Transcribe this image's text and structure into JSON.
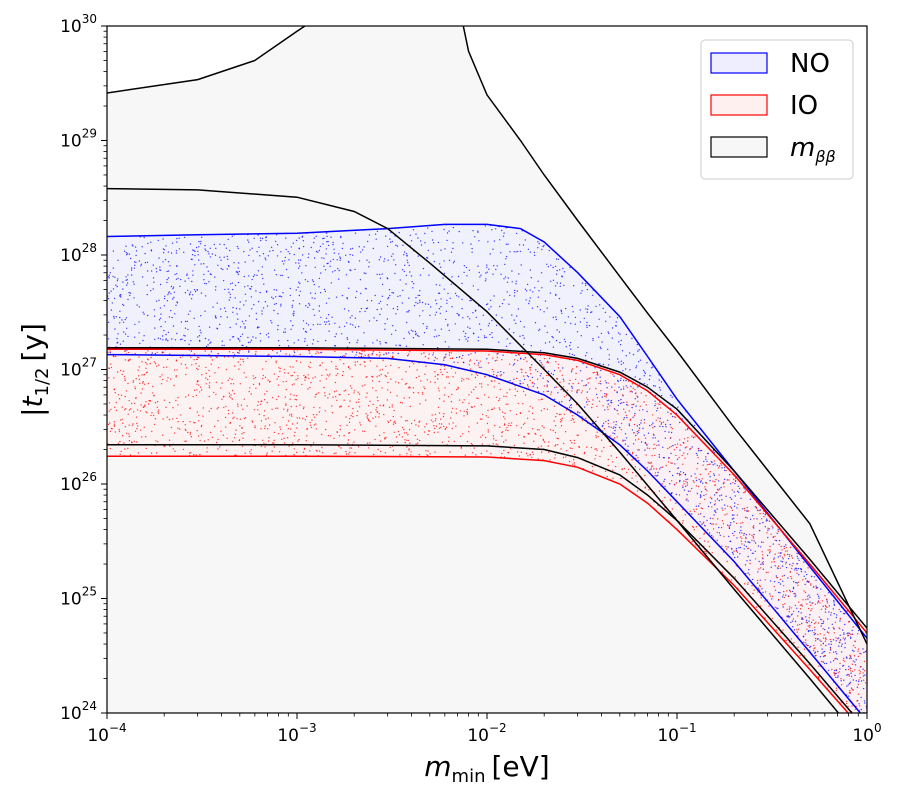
{
  "chart_data": {
    "type": "scatter",
    "xscale": "log",
    "yscale": "log",
    "xlim": [
      0.0001,
      1
    ],
    "ylim": [
      1e+24,
      1e+30
    ],
    "xlabel": {
      "base": "m",
      "sub": "min",
      "unit": "[eV]"
    },
    "ylabel": {
      "prefix": "|",
      "base": "t",
      "sub": "1/2",
      "unit": "[y]"
    },
    "xticks": [
      {
        "value": 0.0001,
        "base": "10",
        "exp": "−4"
      },
      {
        "value": 0.001,
        "base": "10",
        "exp": "−3"
      },
      {
        "value": 0.01,
        "base": "10",
        "exp": "−2"
      },
      {
        "value": 0.1,
        "base": "10",
        "exp": "−1"
      },
      {
        "value": 1,
        "base": "10",
        "exp": "0"
      }
    ],
    "yticks": [
      {
        "value": 1e+24,
        "base": "10",
        "exp": "24"
      },
      {
        "value": 1e+25,
        "base": "10",
        "exp": "25"
      },
      {
        "value": 1e+26,
        "base": "10",
        "exp": "26"
      },
      {
        "value": 1e+27,
        "base": "10",
        "exp": "27"
      },
      {
        "value": 1e+28,
        "base": "10",
        "exp": "28"
      },
      {
        "value": 1e+29,
        "base": "10",
        "exp": "29"
      },
      {
        "value": 1e+30,
        "base": "10",
        "exp": "30"
      }
    ],
    "legend": {
      "placement": "top-right",
      "entries": [
        {
          "label": "NO",
          "edge": "#0000ff",
          "fill": "#eeeeff"
        },
        {
          "label": "IO",
          "edge": "#ff0000",
          "fill": "#fff0f0"
        },
        {
          "label": "m",
          "sub": "ββ",
          "edge": "#000000",
          "fill": "#f7f7f7"
        }
      ]
    },
    "series": [
      {
        "name": "NO",
        "kind": "band",
        "color": "#0000ff",
        "fill": "#eeeeff",
        "upper": [
          [
            0.0001,
            1.45e+28
          ],
          [
            0.0003,
            1.5e+28
          ],
          [
            0.001,
            1.55e+28
          ],
          [
            0.003,
            1.7e+28
          ],
          [
            0.006,
            1.85e+28
          ],
          [
            0.01,
            1.85e+28
          ],
          [
            0.015,
            1.7e+28
          ],
          [
            0.02,
            1.3e+28
          ],
          [
            0.03,
            7e+27
          ],
          [
            0.05,
            2.9e+27
          ],
          [
            0.07,
            1.3e+27
          ],
          [
            0.1,
            5.5e+26
          ],
          [
            0.2,
            1.3e+26
          ],
          [
            0.5,
            1.9e+25
          ],
          [
            1,
            4.5e+24
          ]
        ],
        "lower": [
          [
            0.0001,
            1.35e+27
          ],
          [
            0.001,
            1.3e+27
          ],
          [
            0.003,
            1.25e+27
          ],
          [
            0.006,
            1.1e+27
          ],
          [
            0.01,
            9e+26
          ],
          [
            0.02,
            6e+26
          ],
          [
            0.03,
            4e+26
          ],
          [
            0.05,
            2.2e+26
          ],
          [
            0.07,
            1.3e+26
          ],
          [
            0.1,
            7e+25
          ],
          [
            0.2,
            2.1e+25
          ],
          [
            0.5,
            3.4e+24
          ],
          [
            1,
            8.5e+23
          ]
        ]
      },
      {
        "name": "IO",
        "kind": "band",
        "color": "#ff0000",
        "fill": "#fff0f0",
        "upper": [
          [
            0.0001,
            1.5e+27
          ],
          [
            0.001,
            1.5e+27
          ],
          [
            0.01,
            1.45e+27
          ],
          [
            0.02,
            1.35e+27
          ],
          [
            0.03,
            1.2e+27
          ],
          [
            0.05,
            9e+26
          ],
          [
            0.07,
            6.5e+26
          ],
          [
            0.1,
            4e+26
          ],
          [
            0.2,
            1.2e+26
          ],
          [
            0.5,
            2e+25
          ],
          [
            1,
            5e+24
          ]
        ],
        "lower": [
          [
            0.0001,
            1.75e+26
          ],
          [
            0.001,
            1.75e+26
          ],
          [
            0.01,
            1.72e+26
          ],
          [
            0.02,
            1.6e+26
          ],
          [
            0.03,
            1.4e+26
          ],
          [
            0.05,
            1e+26
          ],
          [
            0.07,
            6.8e+25
          ],
          [
            0.1,
            4e+25
          ],
          [
            0.2,
            1.3e+25
          ],
          [
            0.5,
            2.4e+24
          ],
          [
            1,
            6.5e+23
          ]
        ]
      },
      {
        "name": "m_bb",
        "kind": "lines",
        "color": "#000000",
        "fill": "#f7f7f7",
        "lines": [
          [
            [
              0.0001,
              2.6e+29
            ],
            [
              0.0003,
              3.4e+29
            ],
            [
              0.0006,
              5e+29
            ],
            [
              0.001,
              9e+29
            ],
            [
              0.0011,
              1e+30
            ]
          ],
          [
            [
              0.0075,
              1e+30
            ],
            [
              0.008,
              6e+29
            ],
            [
              0.01,
              2.5e+29
            ],
            [
              0.015,
              1e+29
            ],
            [
              0.02,
              5e+28
            ],
            [
              0.03,
              2e+28
            ],
            [
              0.05,
              6.5e+27
            ],
            [
              0.07,
              3.1e+27
            ],
            [
              0.1,
              1.45e+27
            ],
            [
              0.2,
              3.1e+26
            ],
            [
              0.5,
              4.5e+25
            ],
            [
              1,
              4e+24
            ]
          ],
          [
            [
              0.0001,
              3.8e+28
            ],
            [
              0.0003,
              3.7e+28
            ],
            [
              0.001,
              3.2e+28
            ],
            [
              0.002,
              2.4e+28
            ],
            [
              0.003,
              1.7e+28
            ],
            [
              0.005,
              8.5e+27
            ],
            [
              0.01,
              3.2e+27
            ],
            [
              0.02,
              1e+27
            ],
            [
              0.03,
              5e+26
            ],
            [
              0.05,
              1.9e+26
            ],
            [
              0.1,
              4.8e+25
            ],
            [
              0.2,
              1.2e+25
            ],
            [
              0.5,
              2e+24
            ],
            [
              1,
              5e+23
            ]
          ],
          [
            [
              0.0001,
              1.55e+27
            ],
            [
              0.001,
              1.55e+27
            ],
            [
              0.01,
              1.5e+27
            ],
            [
              0.02,
              1.4e+27
            ],
            [
              0.03,
              1.25e+27
            ],
            [
              0.05,
              9.5e+26
            ],
            [
              0.07,
              7e+26
            ],
            [
              0.1,
              4.5e+26
            ],
            [
              0.2,
              1.3e+26
            ],
            [
              0.5,
              2.2e+25
            ],
            [
              1,
              5.5e+24
            ]
          ],
          [
            [
              0.0001,
              2.2e+26
            ],
            [
              0.001,
              2.2e+26
            ],
            [
              0.01,
              2.15e+26
            ],
            [
              0.02,
              2e+26
            ],
            [
              0.03,
              1.7e+26
            ],
            [
              0.05,
              1.2e+26
            ],
            [
              0.07,
              8e+25
            ],
            [
              0.1,
              4.8e+25
            ],
            [
              0.2,
              1.5e+25
            ],
            [
              0.5,
              2.7e+24
            ],
            [
              1,
              7e+23
            ]
          ]
        ]
      }
    ]
  }
}
